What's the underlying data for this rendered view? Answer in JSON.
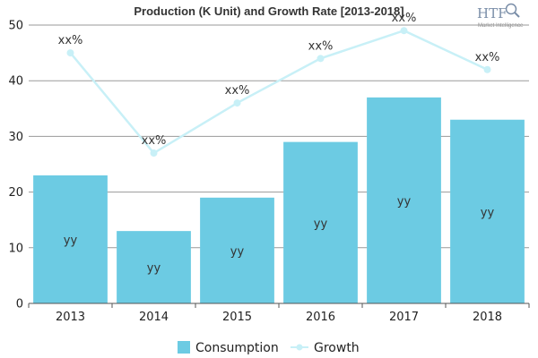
{
  "chart_data": {
    "type": "bar",
    "title": "Production (K Unit) and Growth Rate [2013-2018]",
    "categories": [
      "2013",
      "2014",
      "2015",
      "2016",
      "2017",
      "2018"
    ],
    "ylim": [
      0,
      50
    ],
    "yticks": [
      0,
      10,
      20,
      30,
      40,
      50
    ],
    "grid": true,
    "legend_position": "bottom",
    "series": [
      {
        "name": "Consumption",
        "kind": "bar",
        "color": "#6ccbe3",
        "values": [
          23,
          13,
          19,
          29,
          37,
          33
        ],
        "labels": [
          "yy",
          "yy",
          "yy",
          "yy",
          "yy",
          "yy"
        ]
      },
      {
        "name": "Growth",
        "kind": "line",
        "color": "#c8f0f7",
        "values": [
          45,
          27,
          36,
          44,
          49,
          42
        ],
        "labels": [
          "xx%",
          "xx%",
          "xx%",
          "xx%",
          "xx%",
          "xx%"
        ]
      }
    ]
  },
  "logo": {
    "text": "HTF",
    "subtext": "Market Intelligence",
    "icon": "magnifier-globe-icon"
  }
}
